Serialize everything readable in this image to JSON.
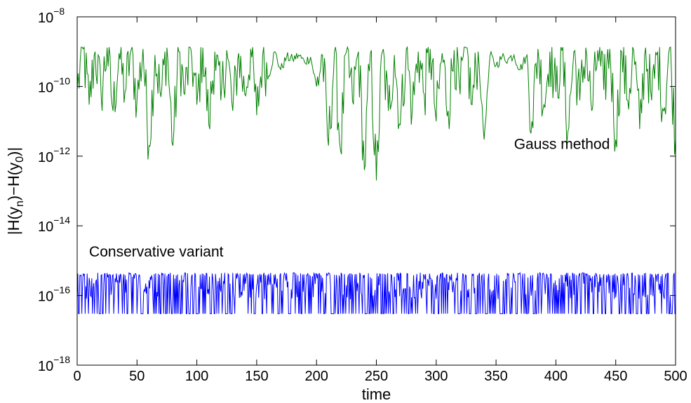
{
  "chart_data": {
    "type": "line",
    "title": "",
    "xlabel": "time",
    "ylabel": "|H(y_n)−H(y_0)|",
    "xlim": [
      0,
      500
    ],
    "ylim": [
      1e-18,
      1e-08
    ],
    "yscale": "log",
    "grid": false,
    "x_ticks": [
      0,
      50,
      100,
      150,
      200,
      250,
      300,
      350,
      400,
      450,
      500
    ],
    "y_ticks": [
      {
        "value": 1e-18,
        "base": "10",
        "exp": "−18"
      },
      {
        "value": 1e-16,
        "base": "10",
        "exp": "−16"
      },
      {
        "value": 1e-14,
        "base": "10",
        "exp": "−14"
      },
      {
        "value": 1e-12,
        "base": "10",
        "exp": "−12"
      },
      {
        "value": 1e-10,
        "base": "10",
        "exp": "−10"
      },
      {
        "value": 1e-08,
        "base": "10",
        "exp": "−8"
      }
    ],
    "series": [
      {
        "label": "Gauss method",
        "color": "#008000",
        "label_at": {
          "x": 365,
          "y": 1.6e-12
        },
        "x": [
          0,
          5,
          10,
          15,
          20,
          25,
          30,
          35,
          40,
          45,
          50,
          55,
          60,
          65,
          70,
          75,
          80,
          85,
          90,
          95,
          100,
          105,
          110,
          115,
          120,
          125,
          130,
          135,
          140,
          145,
          150,
          155,
          160,
          165,
          170,
          175,
          180,
          185,
          190,
          195,
          200,
          205,
          210,
          215,
          220,
          225,
          230,
          235,
          240,
          245,
          250,
          255,
          260,
          265,
          270,
          275,
          280,
          285,
          290,
          295,
          300,
          305,
          310,
          315,
          320,
          325,
          330,
          335,
          340,
          345,
          350,
          355,
          360,
          365,
          370,
          375,
          380,
          385,
          390,
          395,
          400,
          405,
          410,
          415,
          420,
          425,
          430,
          435,
          440,
          445,
          450,
          455,
          460,
          465,
          470,
          475,
          480,
          485,
          490,
          495,
          500
        ],
        "y": [
          8e-11,
          1.2e-09,
          3e-11,
          1e-09,
          6e-11,
          1.3e-09,
          2e-11,
          9e-10,
          7e-11,
          1.1e-09,
          4e-11,
          1.2e-09,
          2e-12,
          8e-10,
          5e-11,
          1.3e-09,
          2e-12,
          1e-09,
          6e-11,
          1.2e-09,
          3e-11,
          1.3e-09,
          8e-12,
          1e-09,
          4e-11,
          1.1e-09,
          2e-11,
          9e-10,
          6e-11,
          1.2e-09,
          1.5e-11,
          8e-10,
          2e-10,
          1e-09,
          3e-10,
          7e-10,
          6e-10,
          8e-10,
          5e-10,
          7e-10,
          1e-10,
          8e-10,
          2e-12,
          1e-09,
          1.5e-12,
          1e-09,
          4e-11,
          1e-09,
          4e-13,
          9e-10,
          2e-13,
          1e-09,
          2e-11,
          8e-10,
          8e-12,
          1.2e-09,
          2e-11,
          1e-09,
          6e-11,
          1.2e-09,
          1e-11,
          9e-10,
          2e-11,
          1.1e-09,
          6e-11,
          1.3e-09,
          3e-11,
          1e-09,
          3e-12,
          8e-10,
          4e-10,
          7e-10,
          6e-10,
          8e-10,
          3e-10,
          7e-10,
          1e-11,
          1.2e-09,
          3e-11,
          1e-09,
          7e-11,
          1.1e-09,
          5e-12,
          1e-09,
          4e-11,
          1.3e-09,
          2e-11,
          1.1e-09,
          8e-11,
          1.2e-09,
          3e-12,
          1e-09,
          4e-11,
          1.1e-09,
          6e-12,
          1.3e-09,
          4e-11,
          1e-09,
          2e-11,
          1.3e-09,
          3e-12
        ]
      },
      {
        "label": "Conservative variant",
        "color": "#0000ff",
        "label_at": {
          "x": 10,
          "y": 1.3e-15
        },
        "x": [
          0,
          500
        ],
        "y_range": [
          3e-17,
          4.5e-16
        ]
      }
    ]
  }
}
